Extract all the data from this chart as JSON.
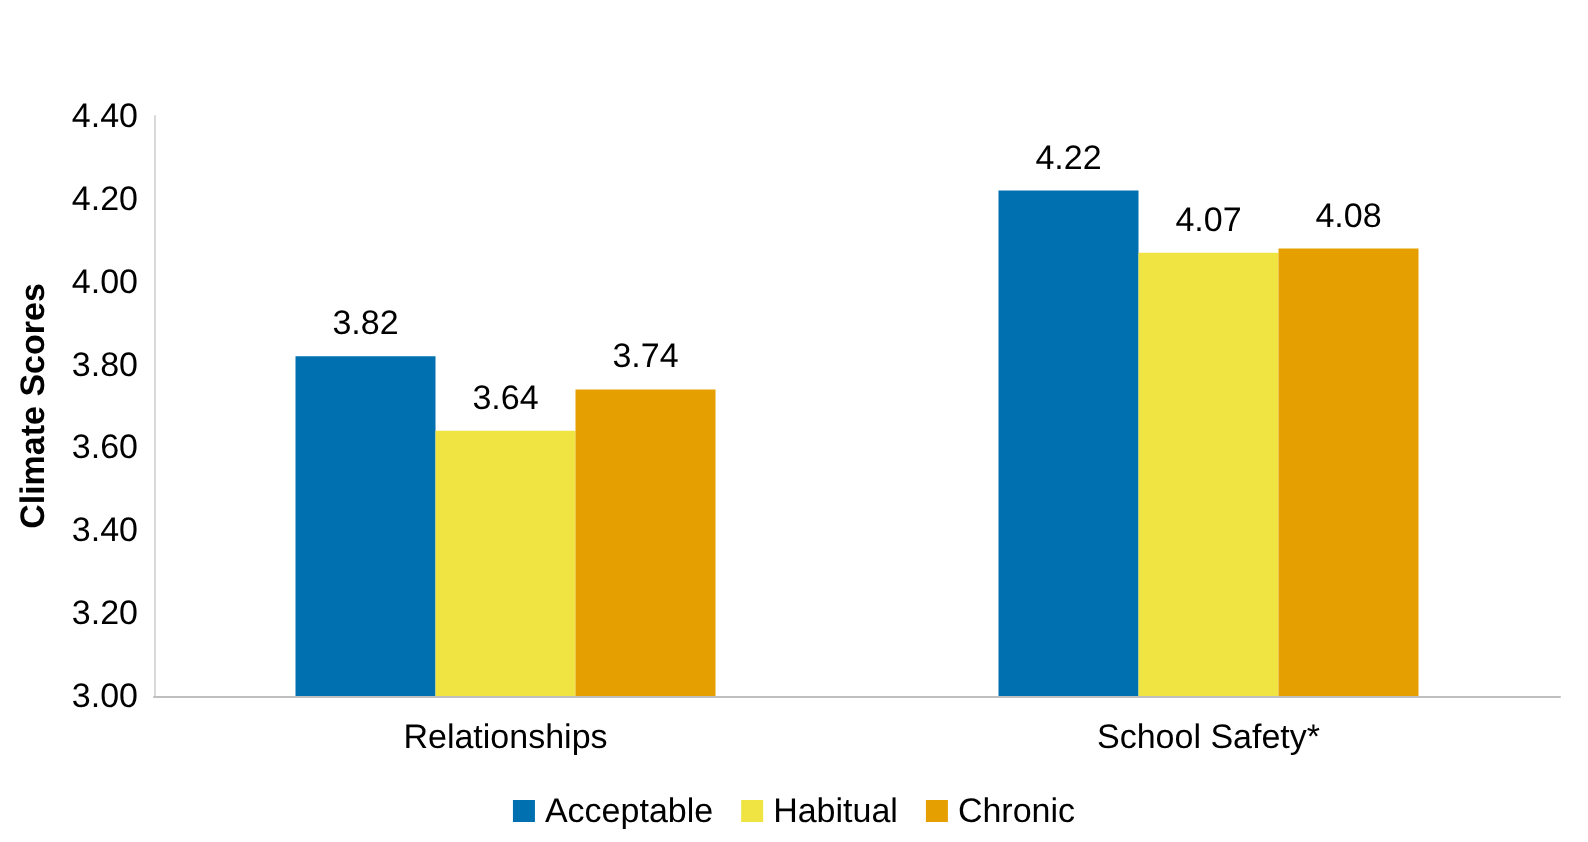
{
  "chart_data": {
    "type": "bar",
    "ylabel": "Climate Scores",
    "categories": [
      "Relationships",
      "School Safety*"
    ],
    "series": [
      {
        "name": "Acceptable",
        "color": "#0070b0",
        "values": [
          3.82,
          4.22
        ]
      },
      {
        "name": "Habitual",
        "color": "#f0e442",
        "values": [
          3.64,
          4.07
        ]
      },
      {
        "name": "Chronic",
        "color": "#e69f00",
        "values": [
          3.74,
          4.08
        ]
      }
    ],
    "ylim": [
      3,
      4.4
    ],
    "yticks": [
      {
        "value": 3,
        "label": "3.00"
      },
      {
        "value": 3.2,
        "label": "3.20"
      },
      {
        "value": 3.4,
        "label": "3.40"
      },
      {
        "value": 3.6,
        "label": "3.60"
      },
      {
        "value": 3.8,
        "label": "3.80"
      },
      {
        "value": 4,
        "label": "4.00"
      },
      {
        "value": 4.2,
        "label": "4.20"
      },
      {
        "value": 4.4,
        "label": "4.40"
      }
    ],
    "data_labels": true,
    "grid": false,
    "legend": "bottom"
  }
}
